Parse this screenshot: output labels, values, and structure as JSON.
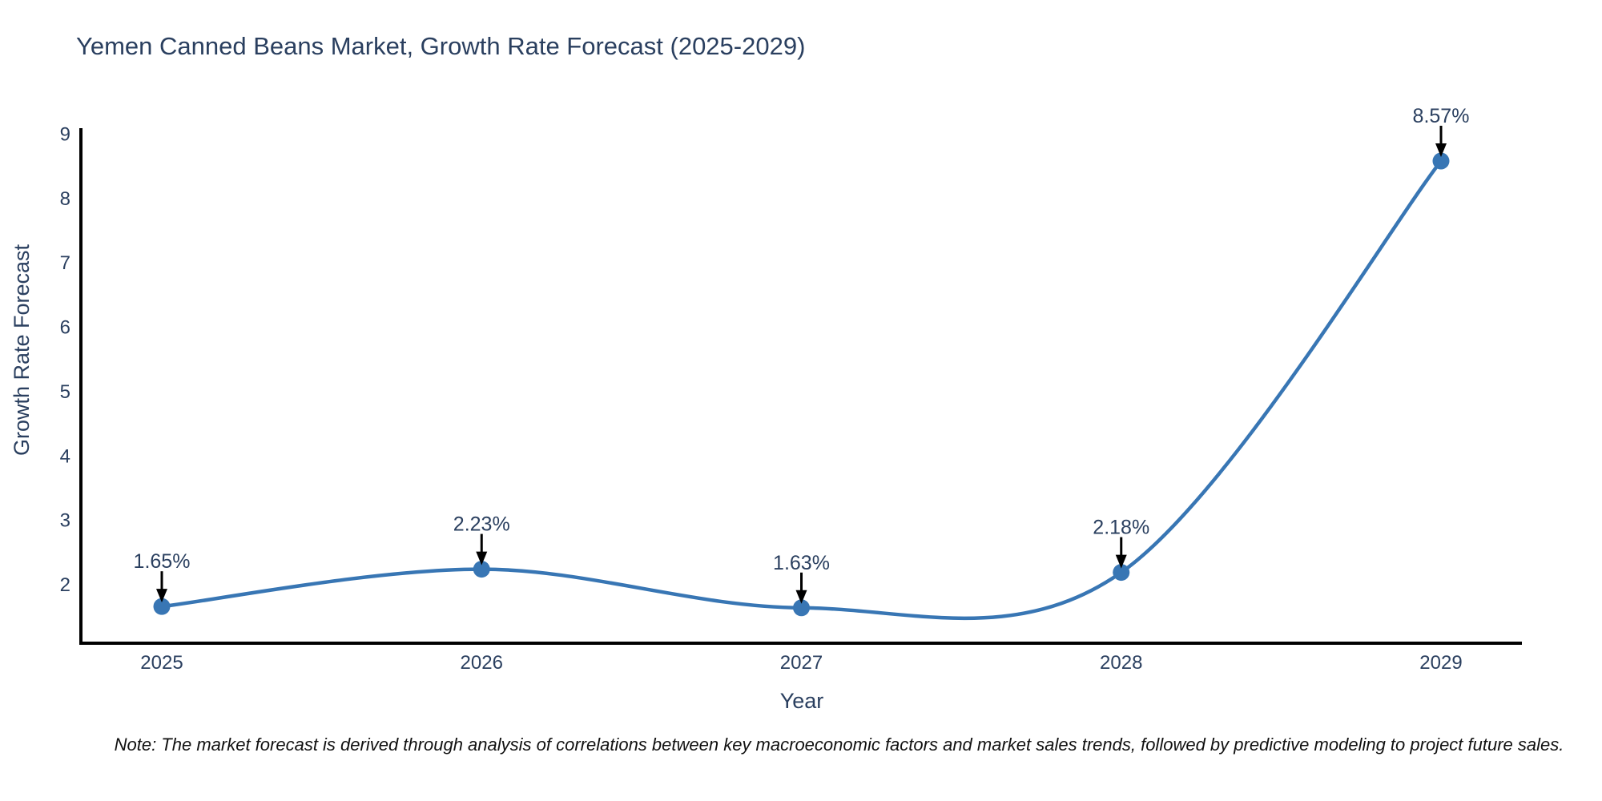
{
  "title": {
    "text": "Yemen Canned Beans Market, Growth Rate Forecast (2025-2029)"
  },
  "chart_data": {
    "type": "line",
    "line_shape": "spline",
    "categories": [
      "2025",
      "2026",
      "2027",
      "2028",
      "2029"
    ],
    "values": [
      1.65,
      2.23,
      1.63,
      2.18,
      8.57
    ],
    "point_labels": [
      "1.65%",
      "2.23%",
      "1.63%",
      "2.18%",
      "8.57%"
    ],
    "title": "Yemen Canned Beans Market, Growth Rate Forecast (2025-2029)",
    "xlabel": "Year",
    "ylabel": "Growth Rate Forecast",
    "ylim": [
      1.08,
      9.08
    ],
    "yticks": [
      2,
      3,
      4,
      5,
      6,
      7,
      8,
      9
    ],
    "grid": false,
    "legend": "none",
    "style": {
      "line_color": "#3876b4",
      "marker_color": "#3876b4",
      "axis_color": "#000000",
      "text_color": "#2a3f5f",
      "annotation_color": "#000000",
      "note_color": "#111111",
      "background": "#ffffff"
    }
  },
  "note": {
    "text": "Note: The market forecast is derived through analysis of correlations between key macroeconomic factors and market sales trends, followed by predictive modeling to project future sales."
  }
}
